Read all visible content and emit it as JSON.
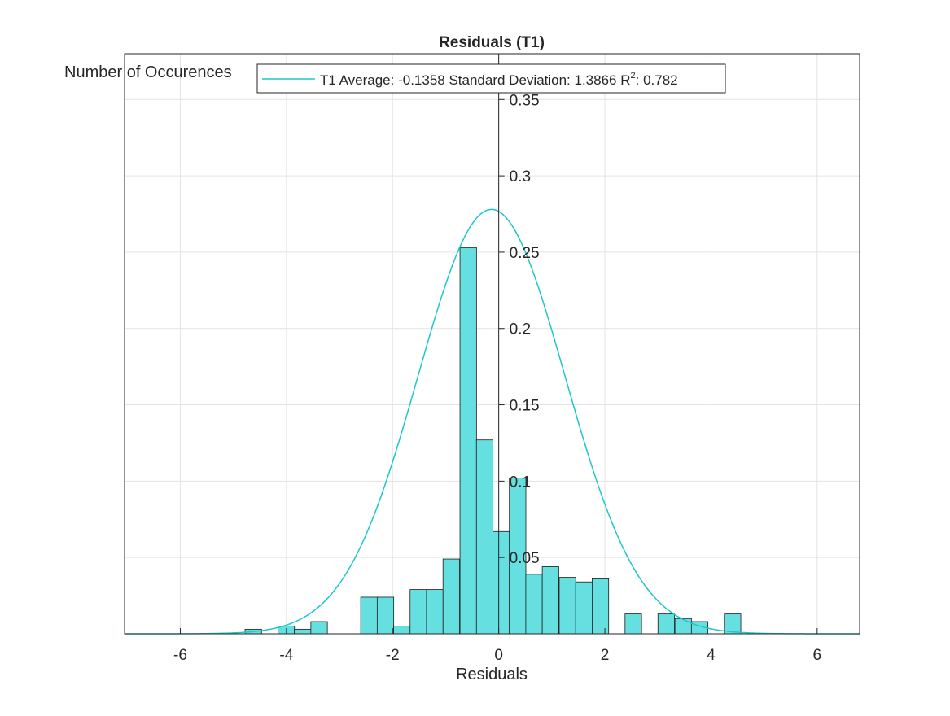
{
  "chart_data": {
    "type": "bar",
    "title": "Residuals (T1)",
    "xlabel": "Residuals",
    "ylabel": "Number of Occurences",
    "xlim": [
      -7.05,
      6.8
    ],
    "ylim": [
      0,
      0.38
    ],
    "xticks": [
      -6,
      -4,
      -2,
      0,
      2,
      4,
      6
    ],
    "xtick_labels": [
      "-6",
      "-4",
      "-2",
      "0",
      "2",
      "4",
      "6"
    ],
    "yticks": [
      0.05,
      0.1,
      0.15,
      0.2,
      0.25,
      0.3,
      0.35
    ],
    "ytick_labels": [
      "0.05",
      "0.1",
      "0.15",
      "0.2",
      "0.25",
      "0.3",
      "0.35"
    ],
    "grid": true,
    "legend_position": "top-center",
    "bar_color": "#66dfe0",
    "curve_color": "#1ec7c9",
    "bin_width": 0.3115,
    "bins": [
      {
        "left": -4.78,
        "value": 0.003
      },
      {
        "left": -4.16,
        "value": 0.005
      },
      {
        "left": -3.85,
        "value": 0.003
      },
      {
        "left": -3.54,
        "value": 0.008
      },
      {
        "left": -2.6,
        "value": 0.024
      },
      {
        "left": -2.29,
        "value": 0.024
      },
      {
        "left": -1.98,
        "value": 0.005
      },
      {
        "left": -1.67,
        "value": 0.029
      },
      {
        "left": -1.36,
        "value": 0.029
      },
      {
        "left": -1.05,
        "value": 0.049
      },
      {
        "left": -0.73,
        "value": 0.253
      },
      {
        "left": -0.42,
        "value": 0.127
      },
      {
        "left": -0.11,
        "value": 0.067
      },
      {
        "left": 0.2,
        "value": 0.102
      },
      {
        "left": 0.51,
        "value": 0.039
      },
      {
        "left": 0.82,
        "value": 0.044
      },
      {
        "left": 1.14,
        "value": 0.037
      },
      {
        "left": 1.45,
        "value": 0.034
      },
      {
        "left": 1.76,
        "value": 0.036
      },
      {
        "left": 2.38,
        "value": 0.013
      },
      {
        "left": 3.0,
        "value": 0.013
      },
      {
        "left": 3.32,
        "value": 0.01
      },
      {
        "left": 3.63,
        "value": 0.008
      },
      {
        "left": 4.25,
        "value": 0.013
      }
    ],
    "series": [
      {
        "name": "T1 Average: -0.1358 Standard Deviation: 1.3866 R^2: 0.782",
        "type": "line",
        "mean": -0.1358,
        "std": 1.3866,
        "peak": 0.278
      }
    ],
    "legend": {
      "prefix": "T1 Average: -0.1358 Standard Deviation: 1.3866 R",
      "sup": "2",
      "suffix": ": 0.782"
    }
  }
}
